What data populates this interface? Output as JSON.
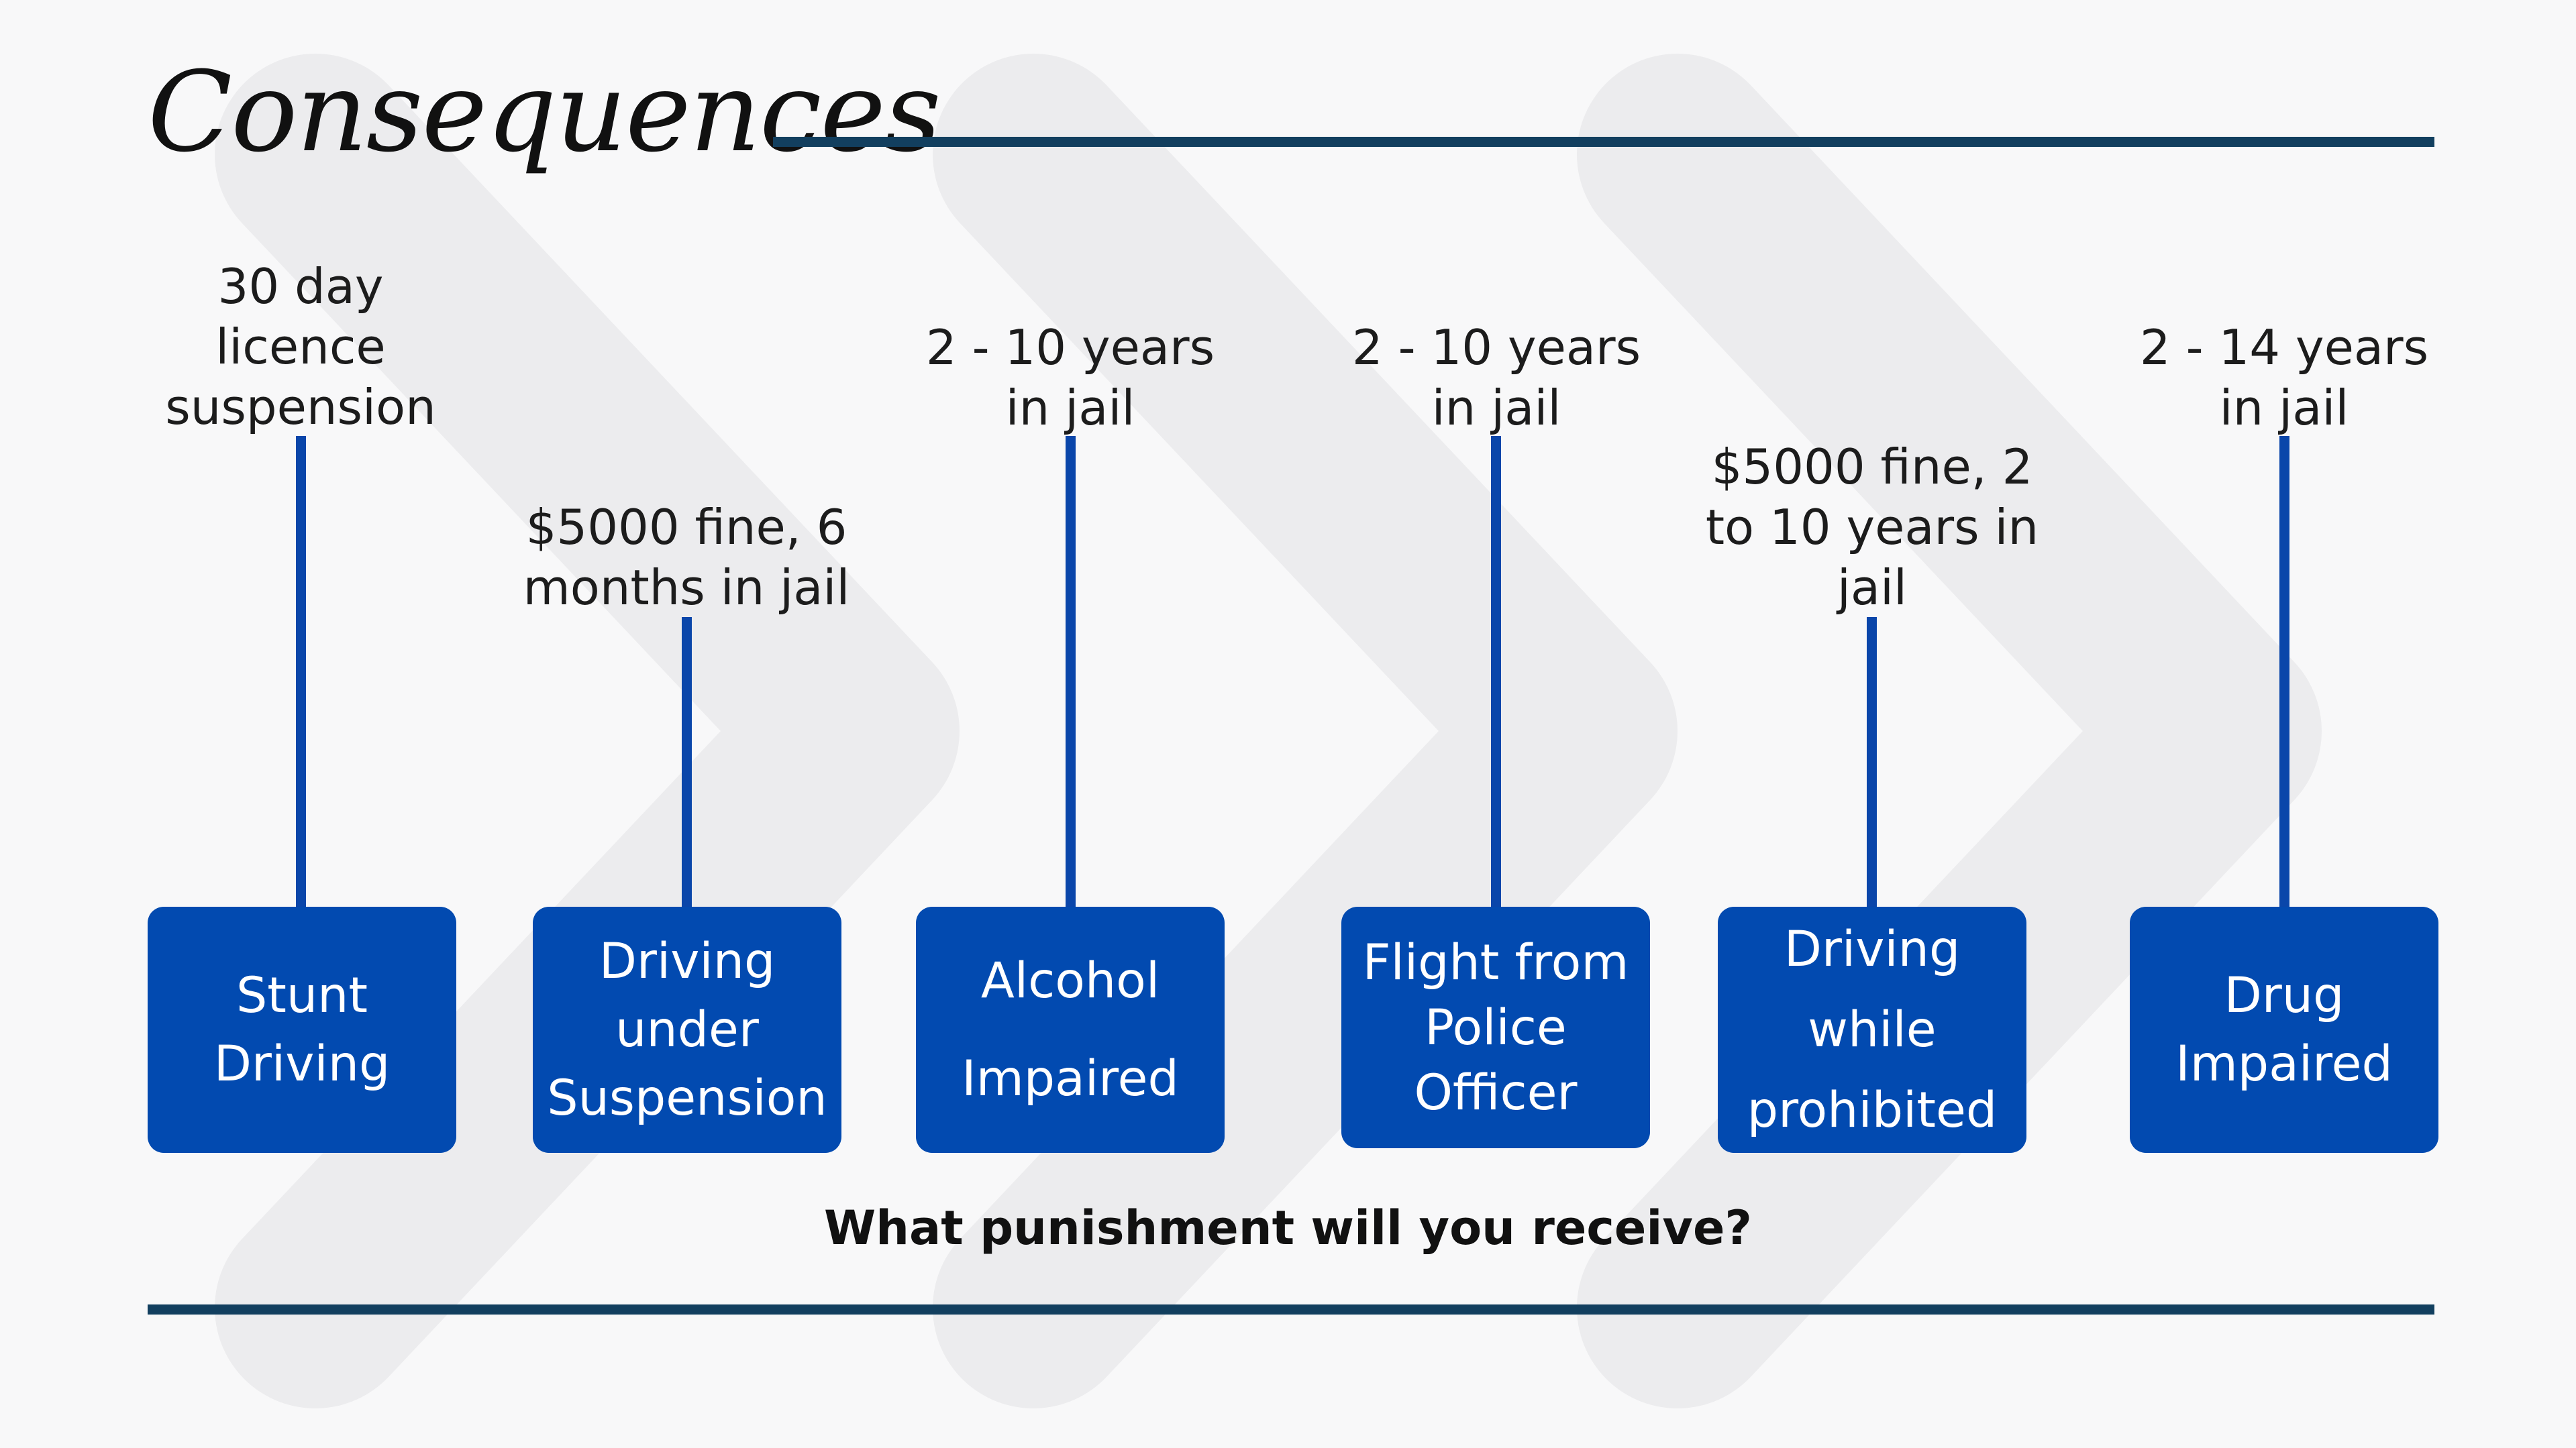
{
  "title": "Consequences",
  "question": "What punishment will you receive?",
  "colors": {
    "accent_blue": "#024ab0",
    "rule_navy": "#123f5f",
    "background": "#f8f8f9",
    "chevron_watermark": "#ececee"
  },
  "items": [
    {
      "offence": "Stunt\nDriving",
      "consequence": "30 day\nlicence\nsuspension"
    },
    {
      "offence": "Driving\nunder\nSuspension",
      "consequence": "$5000 fine, 6\nmonths in jail"
    },
    {
      "offence": "Alcohol\nImpaired",
      "consequence": "2 - 10 years\nin jail"
    },
    {
      "offence": "Flight from\nPolice\nOfficer",
      "consequence": "2 - 10 years\nin jail"
    },
    {
      "offence": "Driving\nwhile\nprohibited",
      "consequence": "$5000 fine, 2\nto 10 years in\njail"
    },
    {
      "offence": "Drug\nImpaired",
      "consequence": "2 - 14 years\nin jail"
    }
  ]
}
